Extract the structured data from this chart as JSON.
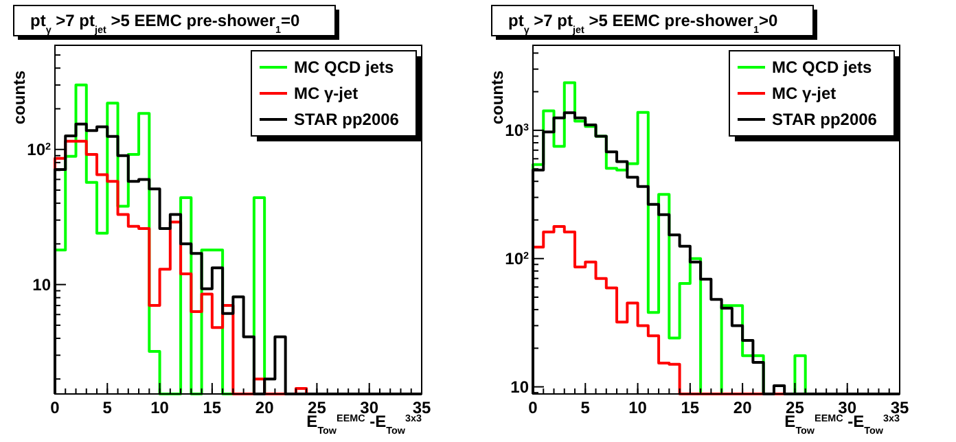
{
  "chart_data": [
    {
      "type": "histogram",
      "title": "pt$_{γ}$ >7  pt$_{jet}$ >5  EEMC pre-shower$_{1}$=0",
      "xlabel": "E$_{Tow}$$^{EEMC}$ -E$_{Tow}$$^{3x3}$",
      "ylabel": "counts",
      "log": "y",
      "legend": "top right",
      "grid": false,
      "bins": [
        0,
        1,
        2,
        3,
        4,
        5,
        6,
        7,
        8,
        9,
        10,
        11,
        12,
        13,
        14,
        15,
        16,
        17,
        18,
        19,
        20,
        21,
        22,
        23,
        24,
        25,
        26,
        27,
        28,
        29,
        30,
        31,
        32,
        33,
        34,
        35
      ],
      "xlim": [
        0,
        35
      ],
      "xticks": [
        0,
        5,
        10,
        15,
        20,
        25,
        30,
        35
      ],
      "ylim": [
        1.55,
        590
      ],
      "yticks": [
        {
          "value": 2,
          "label": null
        },
        {
          "value": 3,
          "label": null
        },
        {
          "value": 4,
          "label": null
        },
        {
          "value": 5,
          "label": null
        },
        {
          "value": 6,
          "label": null
        },
        {
          "value": 7,
          "label": null
        },
        {
          "value": 8,
          "label": null
        },
        {
          "value": 9,
          "label": null
        },
        10,
        {
          "value": 20,
          "label": null
        },
        {
          "value": 30,
          "label": null
        },
        {
          "value": 40,
          "label": null
        },
        {
          "value": 50,
          "label": null
        },
        {
          "value": 60,
          "label": null
        },
        {
          "value": 70,
          "label": null
        },
        {
          "value": 80,
          "label": null
        },
        {
          "value": 90,
          "label": null
        },
        {
          "value": 100,
          "label": "10$^{2}$"
        },
        {
          "value": 200,
          "label": null
        },
        {
          "value": 300,
          "label": null
        },
        {
          "value": 400,
          "label": null
        },
        {
          "value": 500,
          "label": null
        }
      ],
      "series": [
        {
          "name": "MC QCD jets",
          "color": "#00ff00",
          "values": [
            18,
            89,
            300,
            57,
            24,
            220,
            38,
            92,
            185,
            3.2,
            null,
            null,
            44,
            null,
            18,
            18,
            null,
            null,
            null,
            44,
            null,
            null,
            null,
            null,
            null,
            null,
            null,
            null,
            null,
            null,
            null,
            null,
            null,
            null,
            null
          ]
        },
        {
          "name": "MC γ-jet",
          "color": "#ff0000",
          "values": [
            86,
            115,
            115,
            92,
            65,
            58,
            33,
            27,
            26,
            7,
            13,
            29,
            12,
            6.3,
            8.5,
            4.8,
            7,
            null,
            null,
            2,
            null,
            null,
            null,
            1.7,
            null,
            null,
            null,
            null,
            null,
            null,
            null,
            null,
            null,
            null,
            null
          ]
        },
        {
          "name": "STAR pp2006",
          "color": "#000000",
          "values": [
            71,
            126,
            154,
            138,
            147,
            125,
            90,
            58,
            60,
            51,
            26,
            33,
            20,
            17,
            9.3,
            13.3,
            6.1,
            8.1,
            4.1,
            null,
            2,
            4.1,
            null,
            null,
            null,
            null,
            null,
            null,
            null,
            null,
            null,
            null,
            null,
            null,
            null
          ]
        }
      ]
    },
    {
      "type": "histogram",
      "title": "pt$_{γ}$ >7  pt$_{jet}$ >5  EEMC pre-shower$_{1}$>0",
      "xlabel": "E$_{Tow}$$^{EEMC}$ -E$_{Tow}$$^{3x3}$",
      "ylabel": "counts",
      "log": "y",
      "legend": "top right",
      "grid": false,
      "bins": [
        0,
        1,
        2,
        3,
        4,
        5,
        6,
        7,
        8,
        9,
        10,
        11,
        12,
        13,
        14,
        15,
        16,
        17,
        18,
        19,
        20,
        21,
        22,
        23,
        24,
        25,
        26,
        27,
        28,
        29,
        30,
        31,
        32,
        33,
        34,
        35
      ],
      "xlim": [
        0,
        35
      ],
      "xticks": [
        0,
        5,
        10,
        15,
        20,
        25,
        30,
        35
      ],
      "ylim": [
        8.8,
        4600
      ],
      "yticks": [
        {
          "value": 9,
          "label": null
        },
        10,
        {
          "value": 20,
          "label": null
        },
        {
          "value": 30,
          "label": null
        },
        {
          "value": 40,
          "label": null
        },
        {
          "value": 50,
          "label": null
        },
        {
          "value": 60,
          "label": null
        },
        {
          "value": 70,
          "label": null
        },
        {
          "value": 80,
          "label": null
        },
        {
          "value": 90,
          "label": null
        },
        {
          "value": 100,
          "label": "10$^{2}$"
        },
        {
          "value": 200,
          "label": null
        },
        {
          "value": 300,
          "label": null
        },
        {
          "value": 400,
          "label": null
        },
        {
          "value": 500,
          "label": null
        },
        {
          "value": 600,
          "label": null
        },
        {
          "value": 700,
          "label": null
        },
        {
          "value": 800,
          "label": null
        },
        {
          "value": 900,
          "label": null
        },
        {
          "value": 1000,
          "label": "10$^{3}$"
        },
        {
          "value": 2000,
          "label": null
        },
        {
          "value": 3000,
          "label": null
        },
        {
          "value": 4000,
          "label": null
        }
      ],
      "series": [
        {
          "name": "MC QCD jets",
          "color": "#00ff00",
          "values": [
            540,
            1420,
            750,
            2350,
            1180,
            1070,
            900,
            505,
            490,
            550,
            1380,
            38,
            316,
            24,
            64,
            100,
            null,
            null,
            43,
            43,
            17.5,
            17.5,
            null,
            null,
            null,
            17.5,
            null,
            null,
            null,
            null,
            null,
            null,
            null,
            null,
            null
          ]
        },
        {
          "name": "MC γ-jet",
          "color": "#ff0000",
          "values": [
            123,
            161,
            178,
            161,
            86,
            94,
            70,
            59,
            32,
            45,
            30,
            25,
            15.3,
            15,
            null,
            null,
            null,
            null,
            null,
            null,
            null,
            null,
            null,
            null,
            null,
            null,
            null,
            null,
            null,
            null,
            null,
            null,
            null,
            null,
            null
          ]
        },
        {
          "name": "STAR pp2006",
          "color": "#000000",
          "values": [
            490,
            970,
            1250,
            1370,
            1250,
            1100,
            900,
            680,
            570,
            430,
            365,
            265,
            220,
            153,
            125,
            94,
            69,
            48,
            41,
            30,
            23,
            15.5,
            null,
            10.2,
            null,
            null,
            null,
            null,
            null,
            null,
            null,
            null,
            null,
            null,
            null
          ]
        }
      ]
    }
  ]
}
